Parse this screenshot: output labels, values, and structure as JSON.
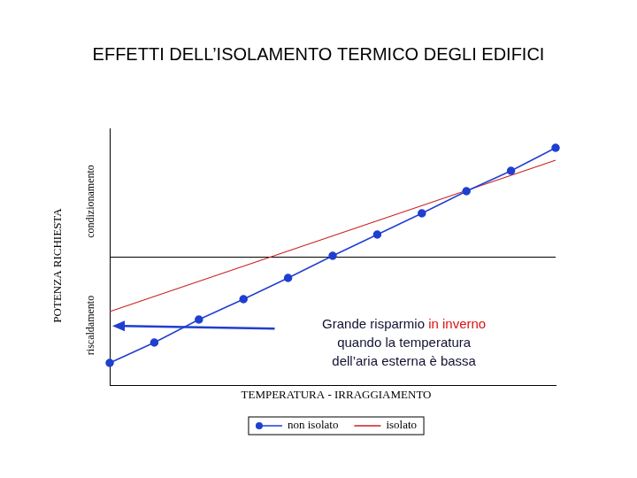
{
  "chart_data": {
    "type": "line",
    "title": "EFFETTI DELL’ISOLAMENTO TERMICO DEGLI EDIFICI",
    "y_label": "POTENZA RICHIESTA",
    "y_upper_label": "condizionamento",
    "y_lower_label": "riscaldamento",
    "x_label": "TEMPERATURA - IRRAGGIAMENTO",
    "xlim": [
      0,
      10
    ],
    "ylim": [
      -14.5,
      14.5
    ],
    "yticks": [
      0
    ],
    "grid": true,
    "tick_labels": false,
    "legend": "bottom",
    "series": [
      {
        "name": "non isolato",
        "color": "#1f3fd0",
        "marker": "circle",
        "line_style": "solid",
        "x": [
          0,
          1,
          2,
          3,
          4,
          5,
          6,
          7,
          8,
          9,
          10
        ],
        "values": [
          -12,
          -9.7,
          -7.1,
          -4.8,
          -2.4,
          0.1,
          2.5,
          4.9,
          7.4,
          9.7,
          12.3
        ]
      },
      {
        "name": "isolato",
        "color": "#cc2222",
        "marker": "none",
        "line_style": "solid",
        "x": [
          0,
          10
        ],
        "values": [
          -6.2,
          10.9
        ]
      }
    ],
    "annotation": {
      "lines": [
        [
          {
            "text": "Grande risparmio "
          },
          {
            "text": "in inverno",
            "color": "#dd1111"
          }
        ],
        [
          {
            "text": "quando la temperatura"
          }
        ],
        [
          {
            "text": "dell’aria esterna è bassa"
          }
        ]
      ]
    }
  }
}
